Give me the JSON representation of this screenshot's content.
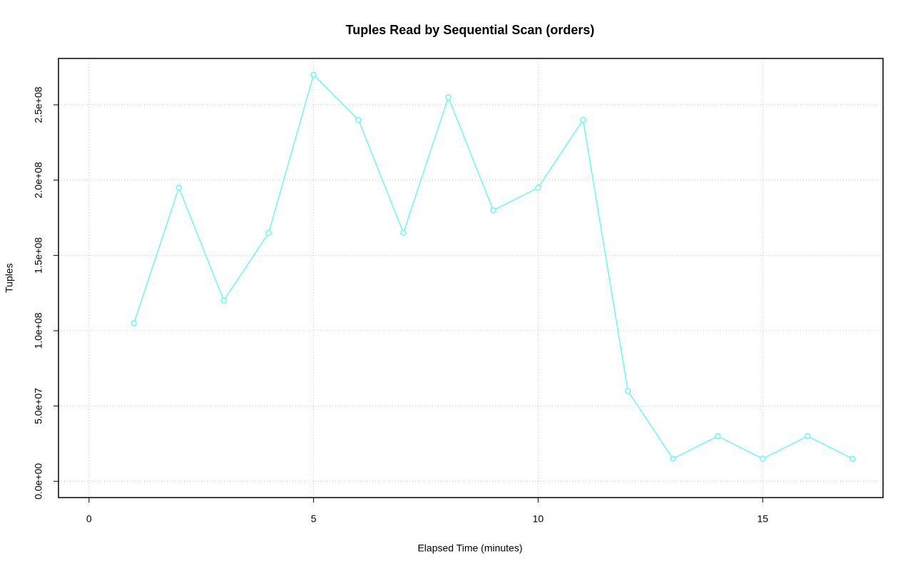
{
  "chart_data": {
    "type": "line",
    "title": "Tuples Read by Sequential Scan (orders)",
    "xlabel": "Elapsed Time (minutes)",
    "ylabel": "Tuples",
    "x": [
      1,
      2,
      3,
      4,
      5,
      6,
      7,
      8,
      9,
      10,
      11,
      12,
      13,
      14,
      15,
      16,
      17
    ],
    "series": [
      {
        "name": "orders",
        "color": "#70f5f5",
        "values": [
          105000000,
          195000000,
          120000000,
          165000000,
          270000000,
          240000000,
          165000000,
          255000000,
          180000000,
          195000000,
          240000000,
          60000000,
          15000000,
          30000000,
          15000000,
          30000000,
          15000000
        ]
      }
    ],
    "xlim": [
      -0.68,
      17.68
    ],
    "ylim": [
      -10800000,
      280800000
    ],
    "xticks": [
      0,
      5,
      10,
      15
    ],
    "yticks": [
      {
        "value": 0,
        "label": "0.0e+00"
      },
      {
        "value": 50000000,
        "label": "5.0e+07"
      },
      {
        "value": 100000000,
        "label": "1.0e+08"
      },
      {
        "value": 150000000,
        "label": "1.5e+08"
      },
      {
        "value": 200000000,
        "label": "2.0e+08"
      },
      {
        "value": 250000000,
        "label": "2.5e+08"
      }
    ],
    "grid": true
  }
}
